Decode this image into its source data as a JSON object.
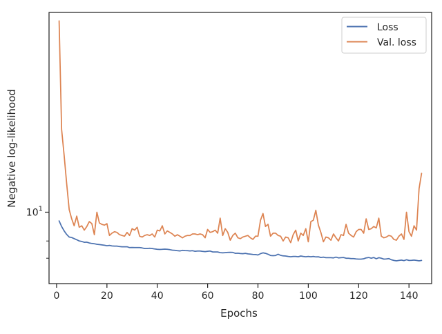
{
  "chart_data": {
    "type": "line",
    "title": "",
    "xlabel": "Epochs",
    "ylabel": "Negative log-likelihood",
    "xlim": [
      -3,
      149
    ],
    "ylim": [
      5.75,
      47
    ],
    "yscale": "log",
    "xticks": [
      0,
      20,
      40,
      60,
      80,
      100,
      120,
      140
    ],
    "xtick_labels": [
      "0",
      "20",
      "40",
      "60",
      "80",
      "100",
      "120",
      "140"
    ],
    "ytick_major": [
      {
        "value": 10,
        "base": "10",
        "exp": "1"
      }
    ],
    "ytick_minor": [
      8,
      7
    ],
    "grid": false,
    "legend": {
      "position": "top-right",
      "entries": [
        "Loss",
        "Val. loss"
      ]
    },
    "colors": {
      "loss": "#4c72b0",
      "val_loss": "#dd8452",
      "axis": "#262626"
    },
    "series": [
      {
        "name": "Loss",
        "x": [
          1,
          2,
          3,
          4,
          5,
          6,
          7,
          8,
          9,
          10,
          11,
          12,
          13,
          14,
          15,
          16,
          17,
          18,
          19,
          20,
          21,
          22,
          23,
          24,
          25,
          26,
          27,
          28,
          29,
          30,
          31,
          32,
          33,
          34,
          35,
          36,
          37,
          38,
          39,
          40,
          41,
          42,
          43,
          44,
          45,
          46,
          47,
          48,
          49,
          50,
          51,
          52,
          53,
          54,
          55,
          56,
          57,
          58,
          59,
          60,
          61,
          62,
          63,
          64,
          65,
          66,
          67,
          68,
          69,
          70,
          71,
          72,
          73,
          74,
          75,
          76,
          77,
          78,
          79,
          80,
          81,
          82,
          83,
          84,
          85,
          86,
          87,
          88,
          89,
          90,
          91,
          92,
          93,
          94,
          95,
          96,
          97,
          98,
          99,
          100,
          101,
          102,
          103,
          104,
          105,
          106,
          107,
          108,
          109,
          110,
          111,
          112,
          113,
          114,
          115,
          116,
          117,
          118,
          119,
          120,
          121,
          122,
          123,
          124,
          125,
          126,
          127,
          128,
          129,
          130,
          131,
          132,
          133,
          134,
          135,
          136,
          137,
          138,
          139,
          140,
          141,
          142,
          143,
          144,
          145
        ],
        "values": [
          9.35,
          8.95,
          8.65,
          8.42,
          8.25,
          8.22,
          8.15,
          8.08,
          8.0,
          7.97,
          7.92,
          7.93,
          7.88,
          7.85,
          7.83,
          7.8,
          7.78,
          7.76,
          7.74,
          7.71,
          7.73,
          7.7,
          7.69,
          7.69,
          7.66,
          7.65,
          7.65,
          7.65,
          7.6,
          7.61,
          7.6,
          7.6,
          7.6,
          7.58,
          7.55,
          7.55,
          7.56,
          7.55,
          7.52,
          7.5,
          7.49,
          7.5,
          7.51,
          7.5,
          7.48,
          7.45,
          7.44,
          7.42,
          7.41,
          7.44,
          7.43,
          7.42,
          7.41,
          7.42,
          7.39,
          7.4,
          7.4,
          7.38,
          7.37,
          7.39,
          7.4,
          7.35,
          7.35,
          7.35,
          7.31,
          7.3,
          7.31,
          7.32,
          7.33,
          7.32,
          7.27,
          7.28,
          7.26,
          7.25,
          7.27,
          7.24,
          7.23,
          7.21,
          7.2,
          7.18,
          7.25,
          7.3,
          7.27,
          7.22,
          7.15,
          7.14,
          7.15,
          7.22,
          7.16,
          7.13,
          7.12,
          7.1,
          7.08,
          7.1,
          7.1,
          7.08,
          7.12,
          7.1,
          7.08,
          7.1,
          7.08,
          7.1,
          7.07,
          7.08,
          7.04,
          7.06,
          7.03,
          7.03,
          7.03,
          7.02,
          7.06,
          7.02,
          7.03,
          7.04,
          7.0,
          7.0,
          6.98,
          6.98,
          6.96,
          6.95,
          6.95,
          6.97,
          7.02,
          7.04,
          7.0,
          7.04,
          6.97,
          7.03,
          7.0,
          6.95,
          6.96,
          6.98,
          6.92,
          6.88,
          6.86,
          6.88,
          6.9,
          6.87,
          6.92,
          6.88,
          6.89,
          6.9,
          6.88,
          6.86,
          6.88
        ],
        "color": "#4c72b0"
      },
      {
        "name": "Val. loss",
        "x": [
          1,
          2,
          3,
          4,
          5,
          6,
          7,
          8,
          9,
          10,
          11,
          12,
          13,
          14,
          15,
          16,
          17,
          18,
          19,
          20,
          21,
          22,
          23,
          24,
          25,
          26,
          27,
          28,
          29,
          30,
          31,
          32,
          33,
          34,
          35,
          36,
          37,
          38,
          39,
          40,
          41,
          42,
          43,
          44,
          45,
          46,
          47,
          48,
          49,
          50,
          51,
          52,
          53,
          54,
          55,
          56,
          57,
          58,
          59,
          60,
          61,
          62,
          63,
          64,
          65,
          66,
          67,
          68,
          69,
          70,
          71,
          72,
          73,
          74,
          75,
          76,
          77,
          78,
          79,
          80,
          81,
          82,
          83,
          84,
          85,
          86,
          87,
          88,
          89,
          90,
          91,
          92,
          93,
          94,
          95,
          96,
          97,
          98,
          99,
          100,
          101,
          102,
          103,
          104,
          105,
          106,
          107,
          108,
          109,
          110,
          111,
          112,
          113,
          114,
          115,
          116,
          117,
          118,
          119,
          120,
          121,
          122,
          123,
          124,
          125,
          126,
          127,
          128,
          129,
          130,
          131,
          132,
          133,
          134,
          135,
          136,
          137,
          138,
          139,
          140,
          141,
          142,
          143,
          144,
          145
        ],
        "values": [
          44,
          19,
          15.5,
          12.5,
          10.2,
          9.5,
          9.0,
          9.7,
          8.9,
          9.0,
          8.7,
          8.95,
          9.3,
          9.15,
          8.4,
          10.0,
          9.2,
          9.1,
          9.05,
          9.15,
          8.35,
          8.5,
          8.6,
          8.55,
          8.4,
          8.35,
          8.3,
          8.55,
          8.35,
          8.8,
          8.7,
          8.9,
          8.3,
          8.25,
          8.35,
          8.4,
          8.35,
          8.45,
          8.25,
          8.7,
          8.65,
          9.0,
          8.45,
          8.65,
          8.55,
          8.45,
          8.3,
          8.4,
          8.3,
          8.2,
          8.3,
          8.35,
          8.35,
          8.45,
          8.45,
          8.4,
          8.45,
          8.4,
          8.2,
          8.75,
          8.55,
          8.6,
          8.7,
          8.5,
          9.55,
          8.35,
          8.8,
          8.55,
          8.05,
          8.35,
          8.5,
          8.2,
          8.15,
          8.25,
          8.3,
          8.35,
          8.2,
          8.1,
          8.3,
          8.3,
          9.4,
          9.9,
          8.95,
          9.1,
          8.3,
          8.5,
          8.5,
          8.35,
          8.3,
          8.0,
          8.25,
          8.2,
          7.9,
          8.4,
          8.7,
          8.0,
          8.5,
          8.35,
          8.8,
          7.95,
          9.3,
          9.4,
          10.15,
          9.05,
          8.55,
          7.95,
          8.25,
          8.2,
          8.05,
          8.45,
          8.2,
          8.0,
          8.4,
          8.35,
          9.1,
          8.5,
          8.35,
          8.25,
          8.6,
          8.75,
          8.75,
          8.5,
          9.5,
          8.75,
          8.8,
          8.95,
          8.85,
          9.55,
          8.3,
          8.2,
          8.25,
          8.35,
          8.3,
          8.1,
          8.05,
          8.3,
          8.45,
          8.1,
          10.0,
          8.6,
          8.3,
          9.0,
          8.7,
          12.0,
          13.5
        ],
        "color": "#dd8452"
      }
    ]
  }
}
